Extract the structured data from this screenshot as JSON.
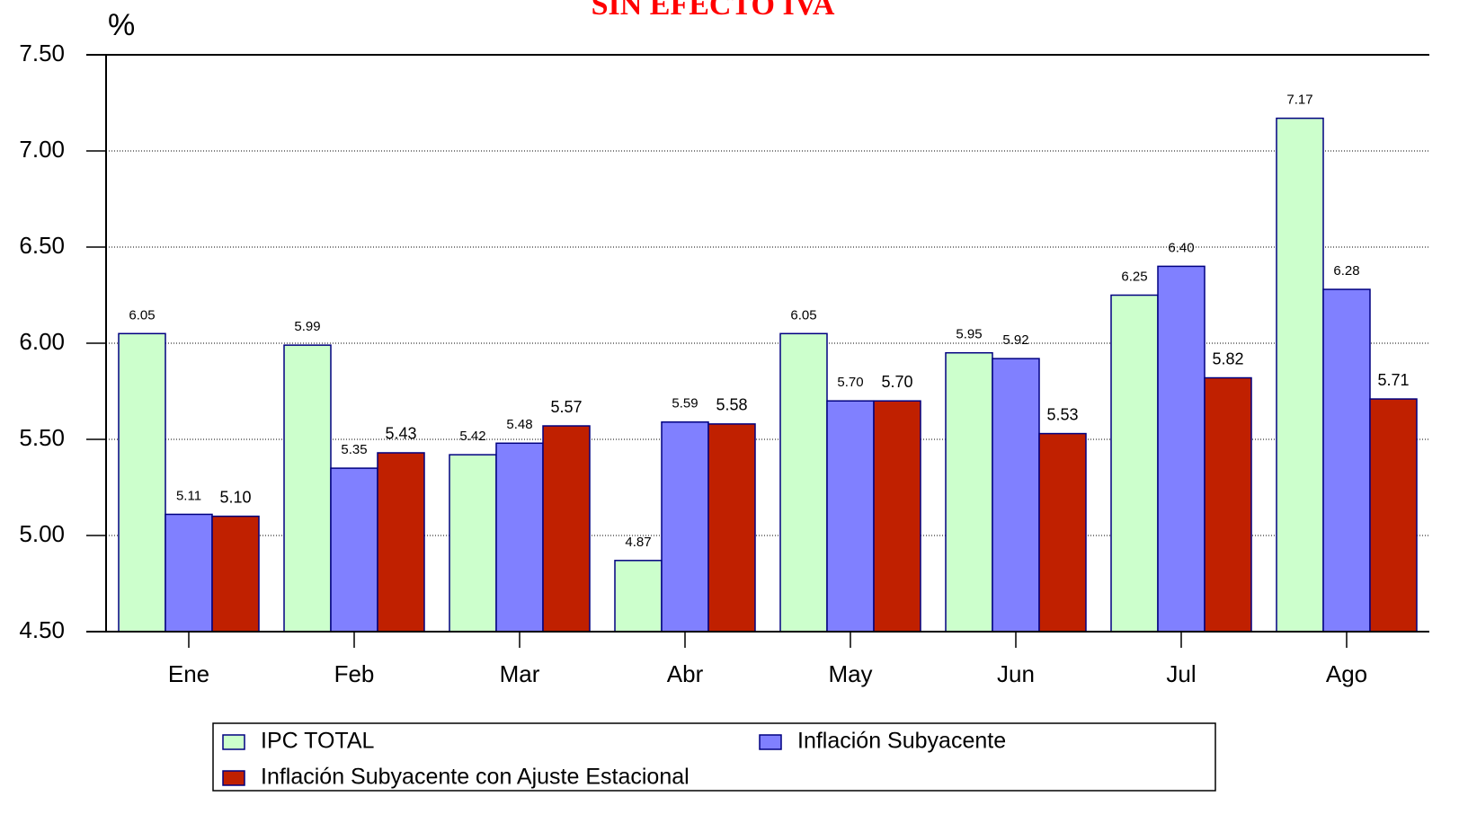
{
  "chart_data": {
    "type": "bar",
    "title": "SIN EFECTO IVA",
    "y_label": "%",
    "categories": [
      "Ene",
      "Feb",
      "Mar",
      "Abr",
      "May",
      "Jun",
      "Jul",
      "Ago"
    ],
    "series": [
      {
        "name": "IPC TOTAL",
        "color": "#ccffcc",
        "values": [
          6.05,
          5.99,
          5.42,
          4.87,
          6.05,
          5.95,
          6.25,
          7.17
        ],
        "value_labels": [
          "6.05",
          "5.99",
          "5.42",
          "4.87",
          "6.05",
          "5.95",
          "6.25",
          "7.17"
        ]
      },
      {
        "name": "Inflación Subyacente",
        "color": "#8080ff",
        "values": [
          5.11,
          5.35,
          5.48,
          5.59,
          5.7,
          5.92,
          6.4,
          6.28
        ],
        "value_labels": [
          "5.11",
          "5.35",
          "5.48",
          "5.59",
          "5.70",
          "5.92",
          "6.40",
          "6.28"
        ]
      },
      {
        "name": "Inflación Subyacente con Ajuste Estacional",
        "color": "#c02000",
        "values": [
          5.1,
          5.43,
          5.57,
          5.58,
          5.7,
          5.53,
          5.82,
          5.71
        ],
        "value_labels": [
          "5.10",
          "5.43",
          "5.57",
          "5.58",
          "5.70",
          "5.53",
          "5.82",
          "5.71"
        ]
      }
    ],
    "ylim": [
      4.5,
      7.5
    ],
    "yticks": [
      {
        "value": 4.5,
        "label": "4.50"
      },
      {
        "value": 5,
        "label": "5.00"
      },
      {
        "value": 5.5,
        "label": "5.50"
      },
      {
        "value": 6,
        "label": "6.00"
      },
      {
        "value": 6.5,
        "label": "6.50"
      },
      {
        "value": 7,
        "label": "7.00"
      },
      {
        "value": 7.5,
        "label": "7.50"
      }
    ],
    "grid": true,
    "bar_edge_color": "#000080"
  }
}
